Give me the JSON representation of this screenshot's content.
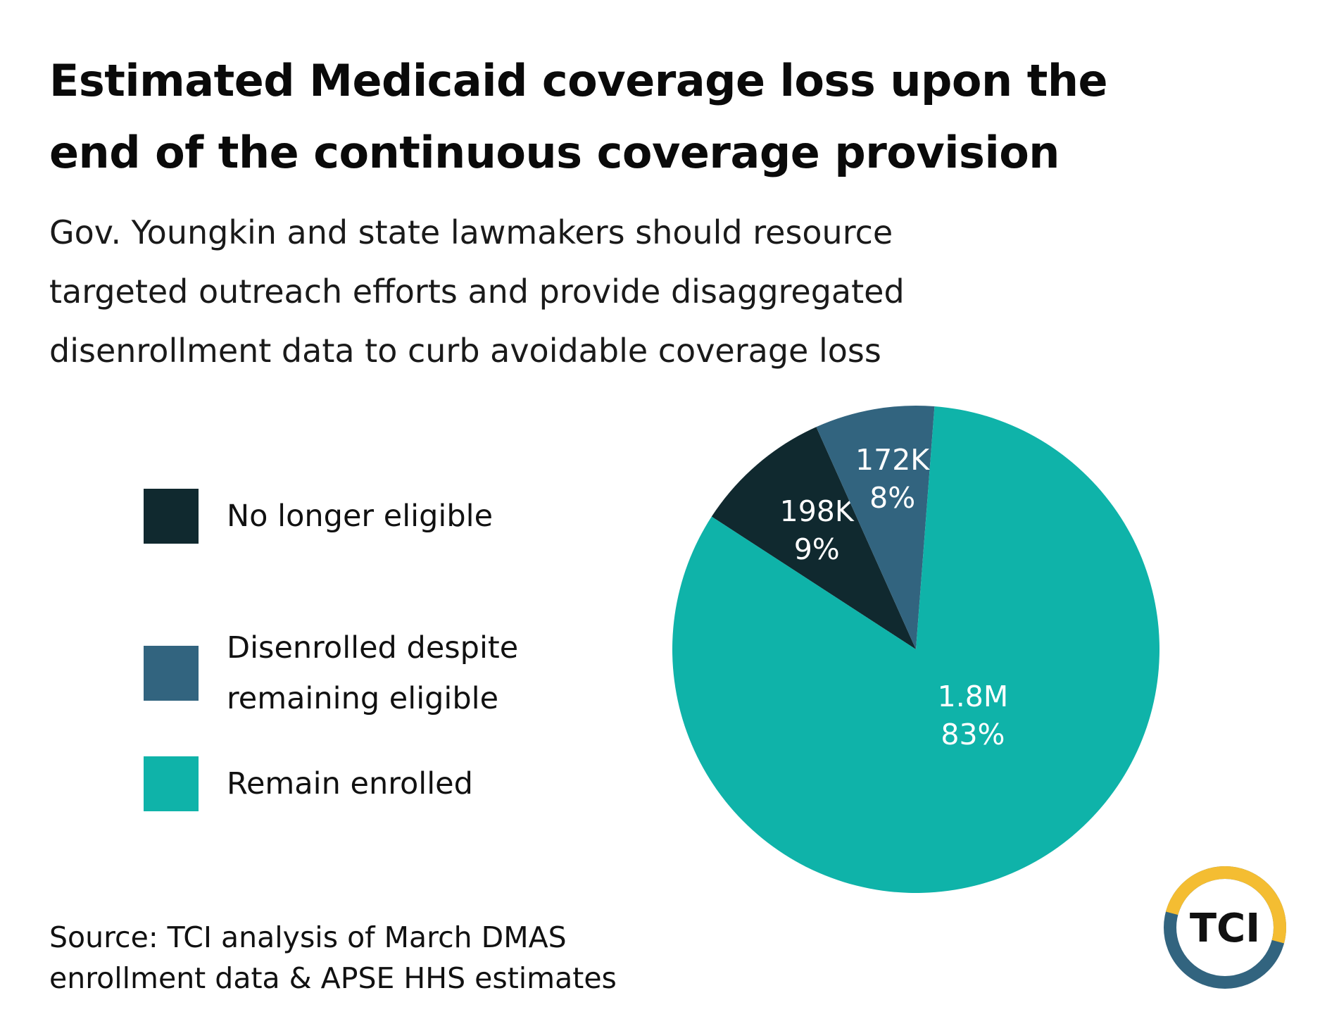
{
  "colors": {
    "no_longer_eligible": "#10292f",
    "disenrolled_eligible": "#32647f",
    "remain_enrolled": "#0fb3a9",
    "logo_yellow": "#f4bd32",
    "logo_blue": "#32647f"
  },
  "header": {
    "title_lines": [
      "Estimated Medicaid coverage loss upon the",
      "end of the continuous coverage provision"
    ],
    "subtitle_lines": [
      "Gov. Youngkin and state lawmakers should resource",
      "targeted outreach efforts and provide disaggregated",
      "disenrollment data to curb avoidable coverage loss"
    ]
  },
  "legend": {
    "items": [
      {
        "lines": [
          "No longer eligible"
        ],
        "color": "#10292f"
      },
      {
        "lines": [
          "Disenrolled despite",
          "remaining eligible"
        ],
        "color": "#32647f"
      },
      {
        "lines": [
          "Remain enrolled"
        ],
        "color": "#0fb3a9"
      }
    ]
  },
  "chart_data": {
    "type": "pie",
    "legend_position": "left",
    "start_angle_deg": -57,
    "direction": "clockwise",
    "slices": [
      {
        "name": "No longer eligible",
        "value": 198000,
        "value_label": "198K",
        "percent_label": "9%",
        "color": "#10292f"
      },
      {
        "name": "Disenrolled despite remaining eligible",
        "value": 172000,
        "value_label": "172K",
        "percent_label": "8%",
        "color": "#32647f"
      },
      {
        "name": "Remain enrolled",
        "value": 1800000,
        "value_label": "1.8M",
        "percent_label": "83%",
        "color": "#0fb3a9"
      }
    ]
  },
  "footer": {
    "source_lines": [
      "Source: TCI analysis of March DMAS",
      "enrollment data & APSE HHS estimates"
    ]
  },
  "logo": {
    "text": "TCI"
  }
}
